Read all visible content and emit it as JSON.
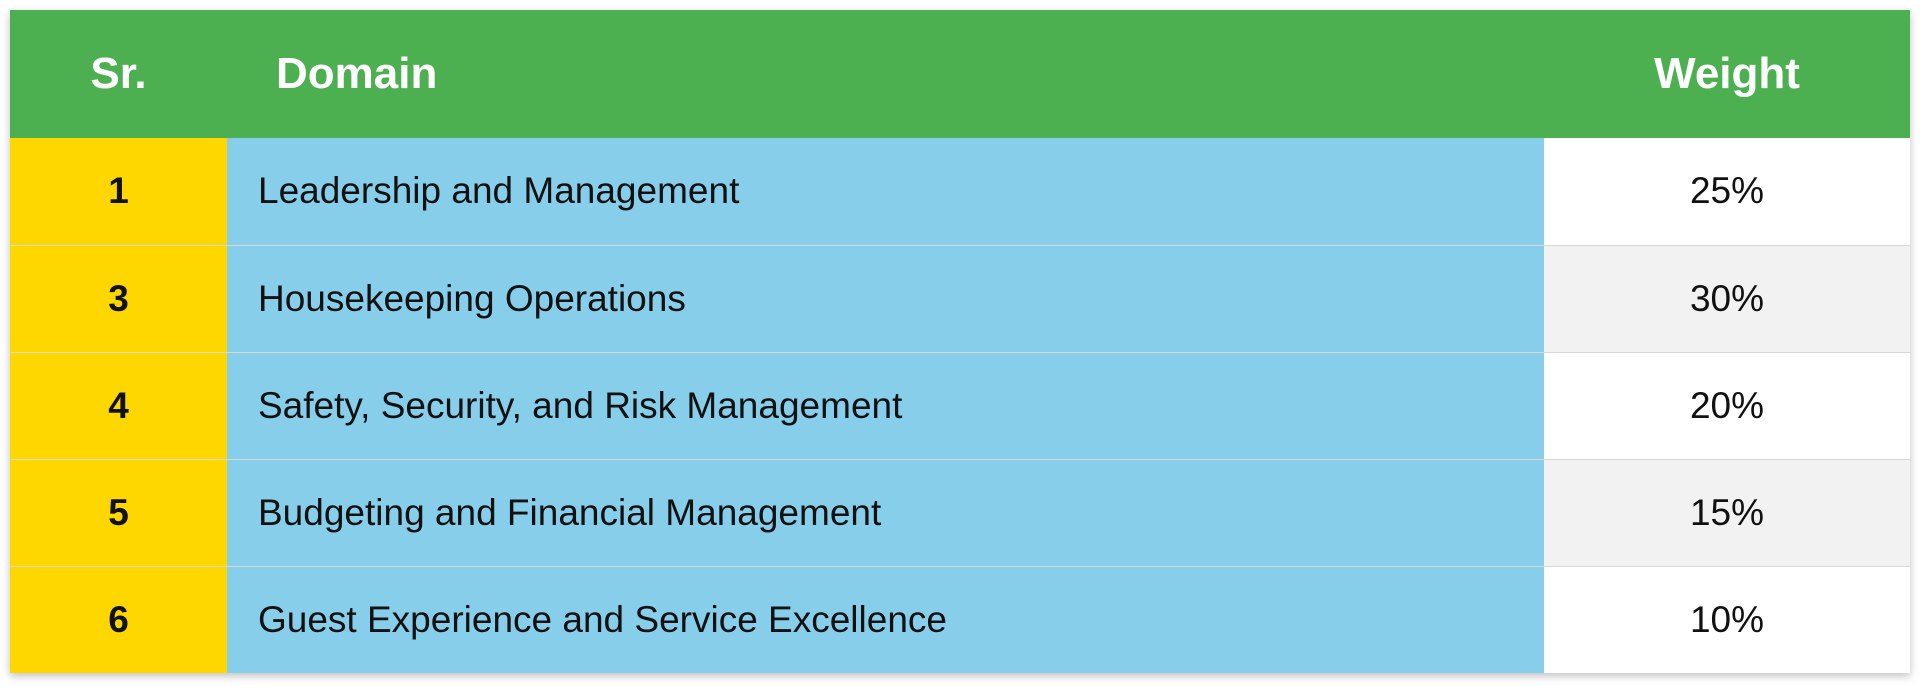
{
  "colors": {
    "header_bg": "#4caf50",
    "sr_bg": "#ffd700",
    "domain_bg": "#87ceeb",
    "weight_bg_alt": "#f2f2f2"
  },
  "table": {
    "headers": {
      "sr": "Sr.",
      "domain": "Domain",
      "weight": "Weight"
    },
    "rows": [
      {
        "sr": "1",
        "domain": "Leadership and Management",
        "weight": "25%"
      },
      {
        "sr": "3",
        "domain": "Housekeeping Operations",
        "weight": "30%"
      },
      {
        "sr": "4",
        "domain": "Safety, Security, and Risk Management",
        "weight": "20%"
      },
      {
        "sr": "5",
        "domain": "Budgeting and Financial Management",
        "weight": "15%"
      },
      {
        "sr": "6",
        "domain": "Guest Experience and Service Excellence",
        "weight": "10%"
      }
    ]
  }
}
